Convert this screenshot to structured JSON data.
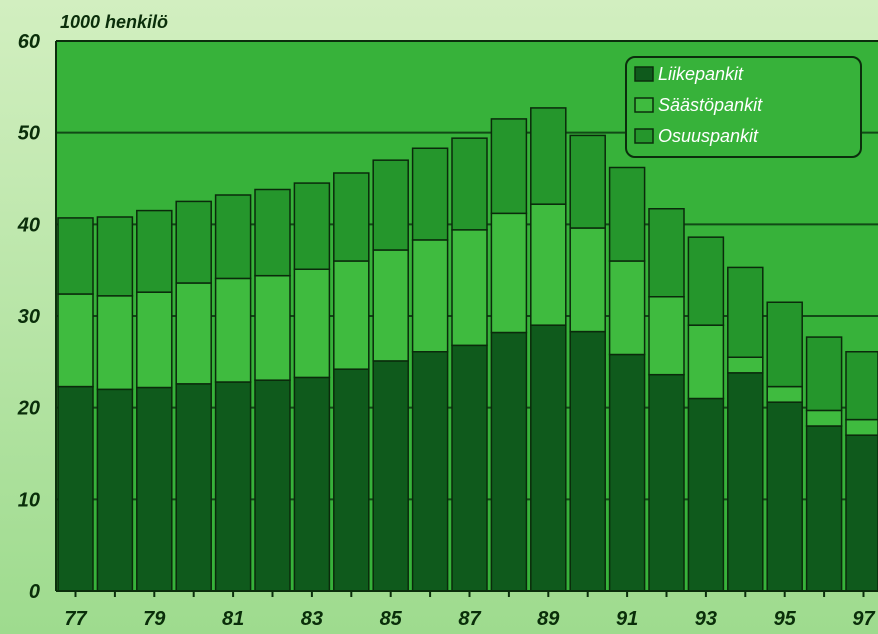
{
  "chart_data": {
    "type": "bar",
    "stacked": true,
    "y_unit_label": "1000 henkilö",
    "ylim": [
      0,
      60
    ],
    "yticks": [
      0,
      10,
      20,
      30,
      40,
      50,
      60
    ],
    "categories": [
      "77",
      "78",
      "79",
      "80",
      "81",
      "82",
      "83",
      "84",
      "85",
      "86",
      "87",
      "88",
      "89",
      "90",
      "91",
      "92",
      "93",
      "94",
      "95",
      "96",
      "97"
    ],
    "xtick_labels": [
      "77",
      "79",
      "81",
      "83",
      "85",
      "87",
      "89",
      "91",
      "93",
      "95",
      "97"
    ],
    "series": [
      {
        "name": "Liikepankit",
        "color": "#0f5a1c",
        "values": [
          22.3,
          22.0,
          22.2,
          22.6,
          22.8,
          23.0,
          23.3,
          24.2,
          25.1,
          26.1,
          26.8,
          28.2,
          29.0,
          28.3,
          25.8,
          23.6,
          21.0,
          23.8,
          20.6,
          18.0,
          17.0
        ]
      },
      {
        "name": "Säästöpankit",
        "color": "#3fbb3f",
        "values": [
          10.1,
          10.2,
          10.4,
          11.0,
          11.3,
          11.4,
          11.8,
          11.8,
          12.1,
          12.2,
          12.6,
          13.0,
          13.2,
          11.3,
          10.2,
          8.5,
          8.0,
          1.7,
          1.7,
          1.7,
          1.7
        ]
      },
      {
        "name": "Osuuspankit",
        "color": "#25962c",
        "values": [
          8.3,
          8.6,
          8.9,
          8.9,
          9.1,
          9.4,
          9.4,
          9.6,
          9.8,
          10.0,
          10.0,
          10.3,
          10.5,
          10.1,
          10.2,
          9.6,
          9.6,
          9.8,
          9.2,
          8.0,
          7.4
        ]
      }
    ],
    "legend": {
      "position": "top-right"
    },
    "grid": {
      "horizontal": true,
      "vertical": false
    }
  }
}
